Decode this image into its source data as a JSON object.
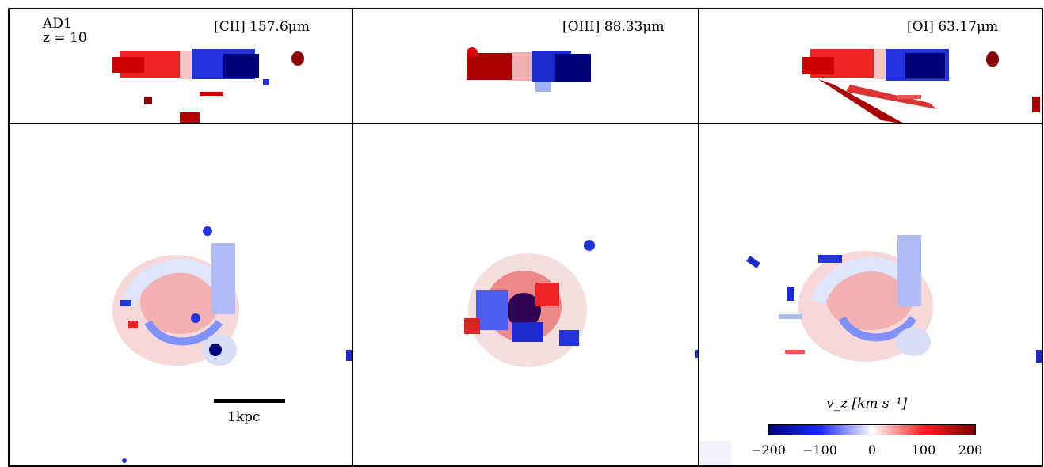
{
  "panels": {
    "cii": {
      "title": "[CII] 157.6μm"
    },
    "oiii": {
      "title": "[OIII] 88.33μm"
    },
    "oi": {
      "title": "[OI] 63.17μm"
    }
  },
  "model": {
    "name": "AD1",
    "redshift": "z = 10"
  },
  "scalebar": {
    "label": "1kpc"
  },
  "colorbar": {
    "label": "v_z [km s⁻¹]",
    "min": -200,
    "max": 200,
    "ticks": [
      "−200",
      "−100",
      "0",
      "100",
      "200"
    ],
    "colors": [
      "#00007a",
      "#2b3dff",
      "#ffffff",
      "#ff3c3c",
      "#7a0000"
    ]
  }
}
